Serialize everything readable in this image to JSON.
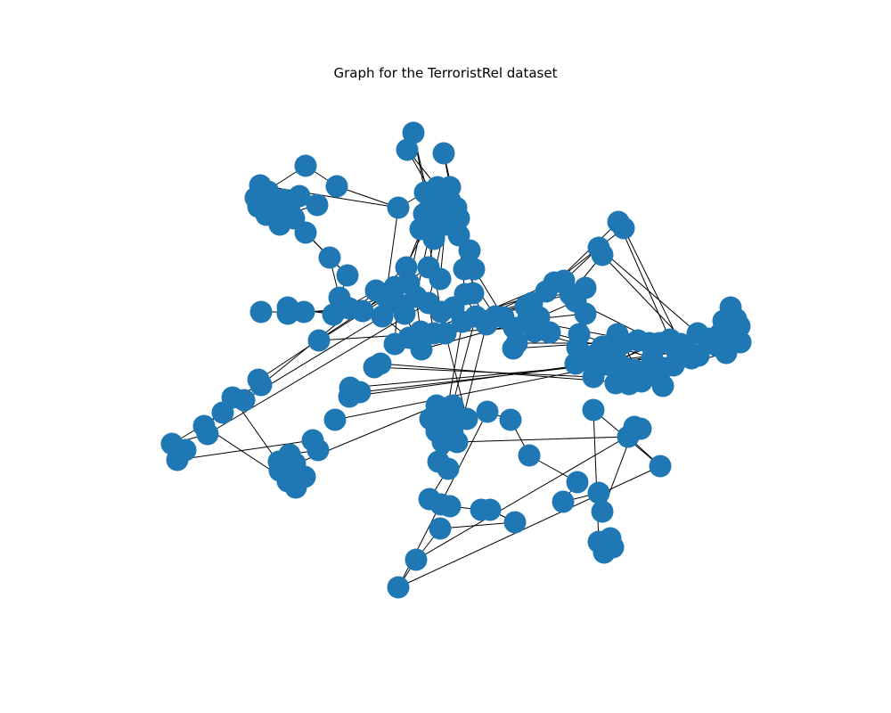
{
  "figure": {
    "title": "Graph for the TerroristRel dataset"
  },
  "style": {
    "node_color": "#1f77b4",
    "edge_color": "#000000",
    "background": "#ffffff"
  }
}
